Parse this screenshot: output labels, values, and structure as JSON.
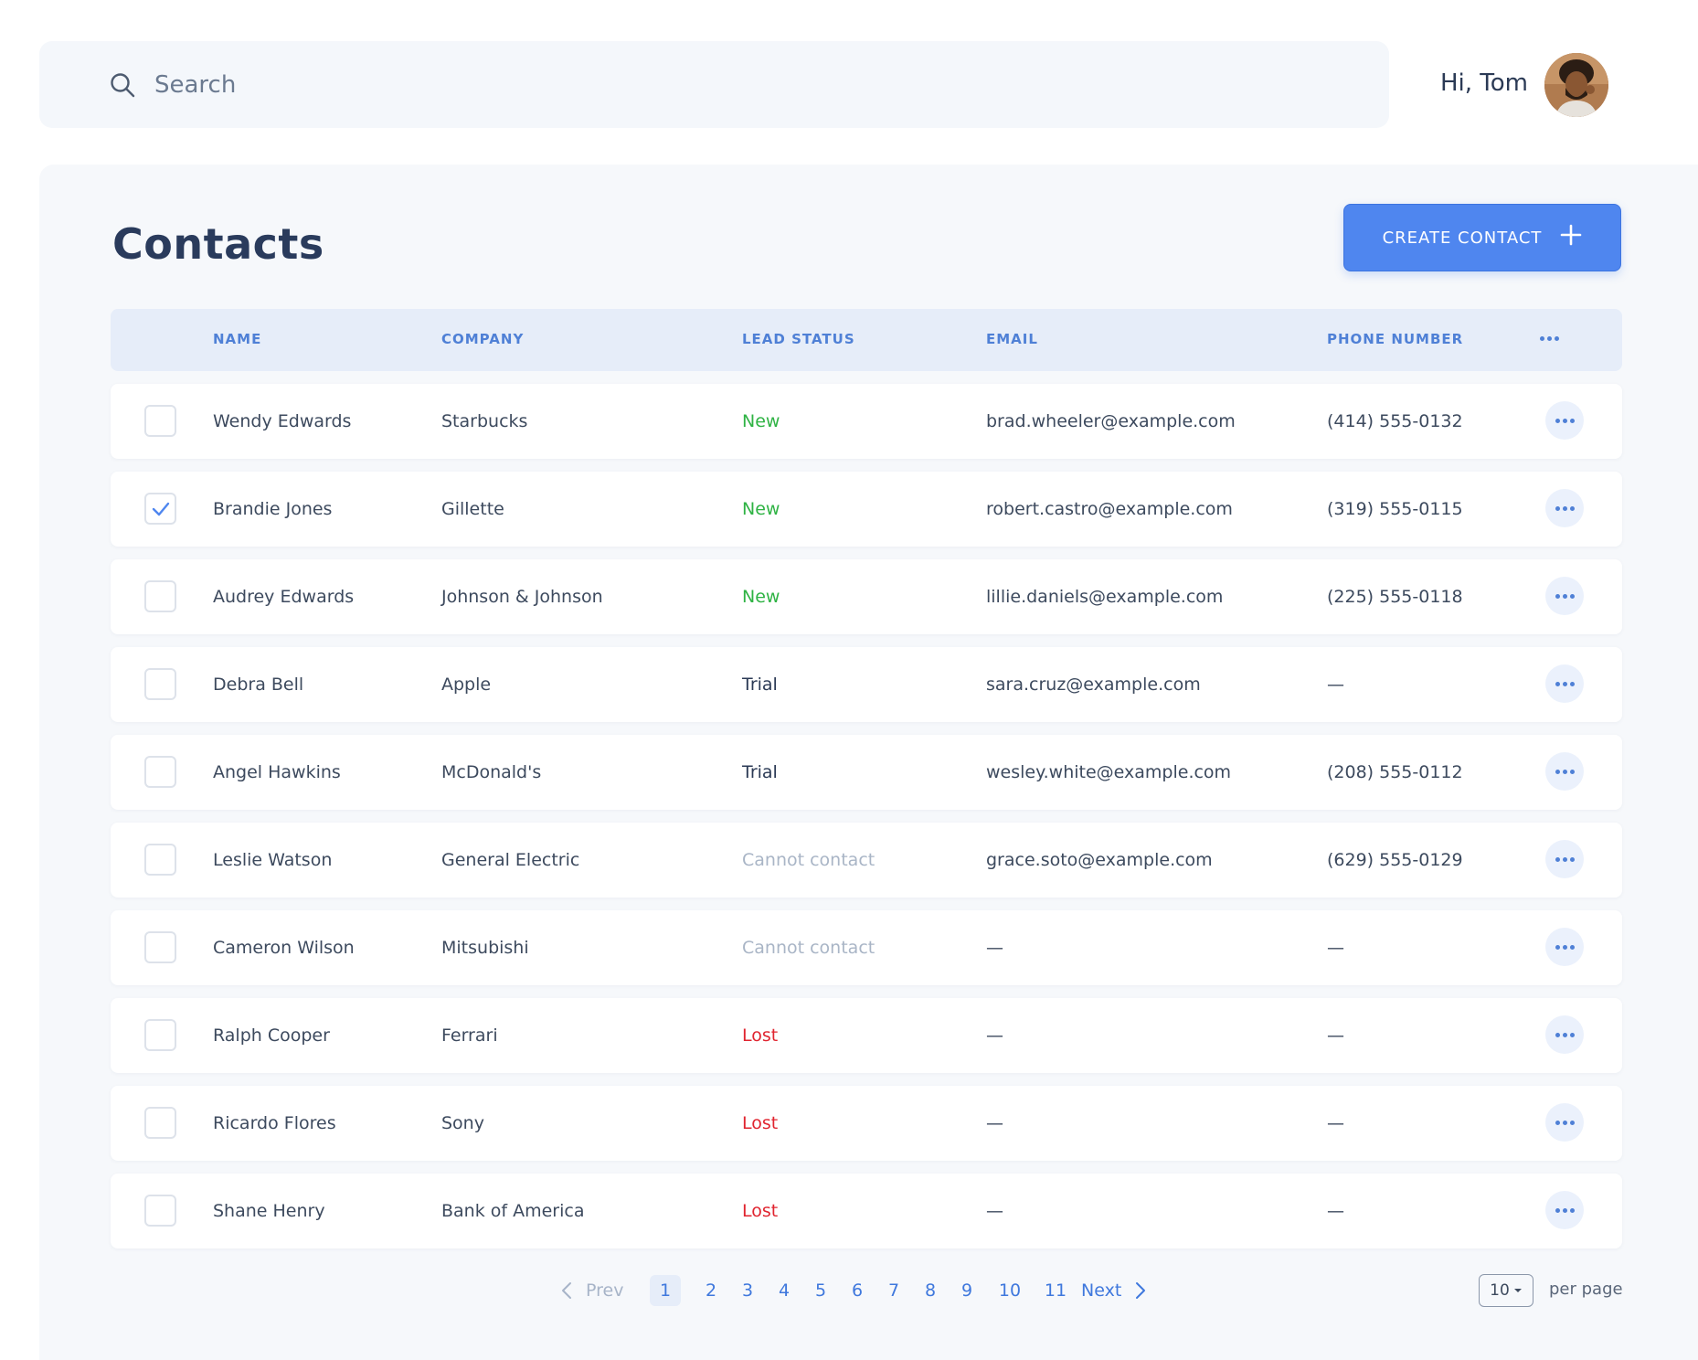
{
  "search": {
    "placeholder": "Search"
  },
  "user": {
    "greeting": "Hi, Tom"
  },
  "page": {
    "title": "Contacts",
    "create_label": "CREATE CONTACT"
  },
  "table": {
    "headers": {
      "name": "NAME",
      "company": "COMPANY",
      "lead_status": "LEAD STATUS",
      "email": "EMAIL",
      "phone": "PHONE NUMBER"
    },
    "rows": [
      {
        "checked": false,
        "name": "Wendy Edwards",
        "company": "Starbucks",
        "status": "New",
        "email": "brad.wheeler@example.com",
        "phone": "(414) 555-0132"
      },
      {
        "checked": true,
        "name": "Brandie Jones",
        "company": "Gillette",
        "status": "New",
        "email": "robert.castro@example.com",
        "phone": "(319) 555-0115"
      },
      {
        "checked": false,
        "name": "Audrey Edwards",
        "company": "Johnson & Johnson",
        "status": "New",
        "email": "lillie.daniels@example.com",
        "phone": "(225) 555-0118"
      },
      {
        "checked": false,
        "name": "Debra Bell",
        "company": "Apple",
        "status": "Trial",
        "email": "sara.cruz@example.com",
        "phone": "—"
      },
      {
        "checked": false,
        "name": "Angel Hawkins",
        "company": "McDonald's",
        "status": "Trial",
        "email": "wesley.white@example.com",
        "phone": "(208) 555-0112"
      },
      {
        "checked": false,
        "name": "Leslie Watson",
        "company": "General Electric",
        "status": "Cannot contact",
        "email": "grace.soto@example.com",
        "phone": "(629) 555-0129"
      },
      {
        "checked": false,
        "name": "Cameron Wilson",
        "company": "Mitsubishi",
        "status": "Cannot contact",
        "email": "—",
        "phone": "—"
      },
      {
        "checked": false,
        "name": "Ralph Cooper",
        "company": "Ferrari",
        "status": "Lost",
        "email": "—",
        "phone": "—"
      },
      {
        "checked": false,
        "name": "Ricardo Flores",
        "company": "Sony",
        "status": "Lost",
        "email": "—",
        "phone": "—"
      },
      {
        "checked": false,
        "name": "Shane Henry",
        "company": "Bank of America",
        "status": "Lost",
        "email": "—",
        "phone": "—"
      }
    ]
  },
  "status_colors": {
    "New": "#2fb344",
    "Trial": "#2b3a55",
    "Cannot contact": "#a9b5c6",
    "Lost": "#e0242f"
  },
  "pagination": {
    "prev_label": "Prev",
    "next_label": "Next",
    "pages": [
      "1",
      "2",
      "3",
      "4",
      "5",
      "6",
      "7",
      "8",
      "9",
      "10",
      "11"
    ],
    "current": "1",
    "per_page_value": "10",
    "per_page_label": "per page"
  },
  "icons": {
    "search": "search-icon",
    "plus": "plus-icon",
    "more": "more-dots-icon",
    "check": "check-icon",
    "prev": "chevron-left-icon",
    "next": "chevron-right-icon",
    "caret": "caret-down-icon"
  }
}
